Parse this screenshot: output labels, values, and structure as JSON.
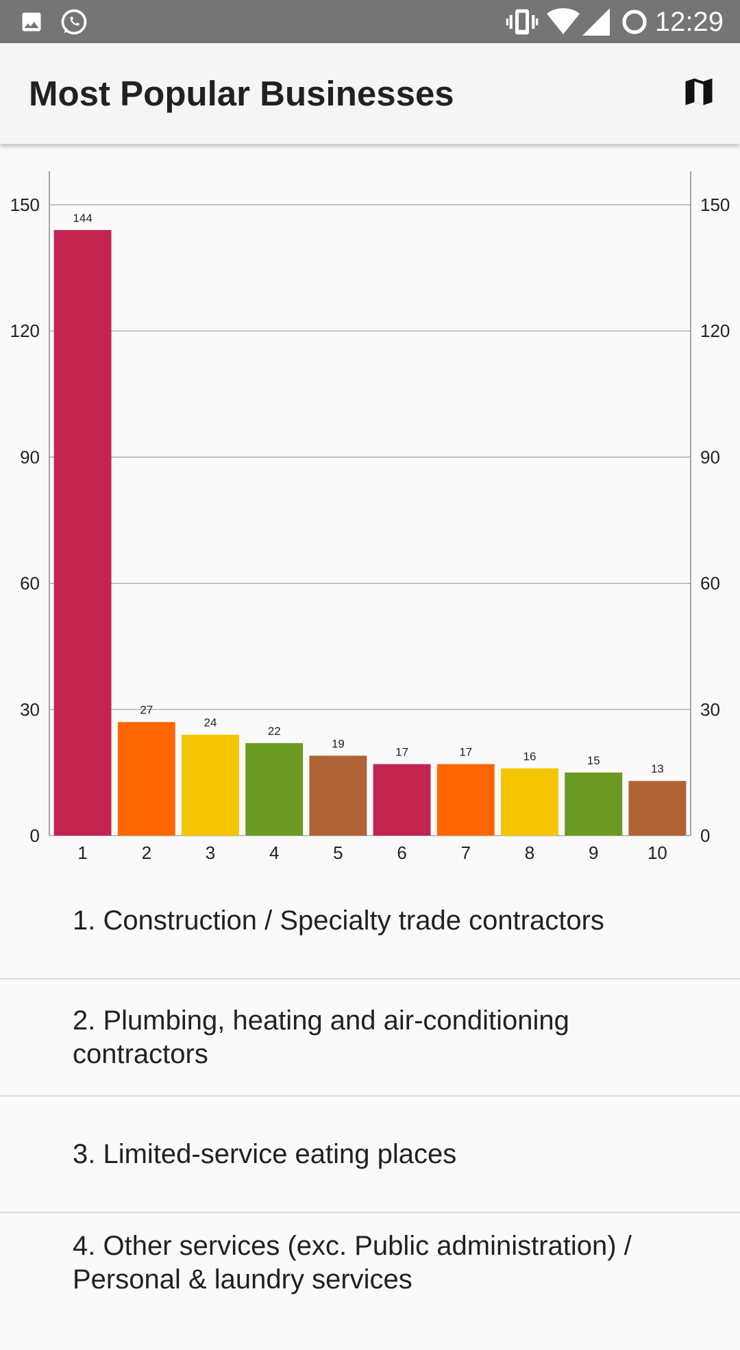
{
  "status_bar": {
    "time": "12:29",
    "left_icons": [
      "image-icon",
      "whatsapp-icon"
    ],
    "right_icons": [
      "vibrate-icon",
      "wifi-icon",
      "cell-signal-icon",
      "sync-icon"
    ]
  },
  "app_bar": {
    "title": "Most Popular Businesses",
    "action_icon": "map-icon"
  },
  "colors": {
    "crimson": "#c2244f",
    "orange": "#ff6600",
    "yellow": "#f4c500",
    "green": "#6b9a22",
    "brown": "#b06335"
  },
  "chart_data": {
    "type": "bar",
    "categories": [
      "1",
      "2",
      "3",
      "4",
      "5",
      "6",
      "7",
      "8",
      "9",
      "10"
    ],
    "values": [
      144,
      27,
      24,
      22,
      19,
      17,
      17,
      16,
      15,
      13
    ],
    "bar_colors": [
      "#c2244f",
      "#ff6600",
      "#f4c500",
      "#6b9a22",
      "#b06335",
      "#c2244f",
      "#ff6600",
      "#f4c500",
      "#6b9a22",
      "#b06335"
    ],
    "ylim": [
      0,
      150
    ],
    "yticks": [
      0,
      30,
      60,
      90,
      120,
      150
    ],
    "right_axis": true,
    "grid": true,
    "data_labels": true,
    "title": "",
    "xlabel": "",
    "ylabel": ""
  },
  "list": {
    "items": [
      "1. Construction / Specialty trade contractors",
      "2. Plumbing, heating and air-conditioning contractors",
      "3. Limited-service eating places",
      "4. Other services (exc. Public administration) / Personal & laundry services"
    ]
  }
}
